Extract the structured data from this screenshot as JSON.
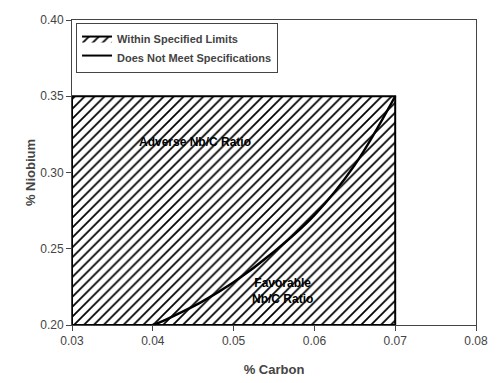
{
  "chart_data": {
    "type": "line",
    "xlabel": "% Carbon",
    "ylabel": "% Niobium",
    "xlim": [
      0.03,
      0.08
    ],
    "ylim": [
      0.2,
      0.4
    ],
    "xticks": [
      0.03,
      0.04,
      0.05,
      0.06,
      0.07,
      0.08
    ],
    "yticks": [
      {
        "value": 0.2,
        "label": "0.20"
      },
      0.25,
      {
        "value": 0.3,
        "label": "0.30"
      },
      0.35,
      {
        "value": 0.4,
        "label": "0.40"
      }
    ],
    "grid": false,
    "legend": "upper left",
    "series": [
      {
        "name": "Within Specified Limits",
        "type": "area",
        "color": "#000000",
        "x": [
          0.03,
          0.07,
          0.07,
          0.03,
          0.03
        ],
        "values": [
          0.2,
          0.2,
          0.35,
          0.35,
          0.2
        ]
      },
      {
        "name": "Does Not Meet Specifications",
        "type": "area",
        "color": "#ffffff",
        "x": [],
        "values": []
      },
      {
        "type": "line",
        "color": "#000000",
        "line_style": "solid",
        "x": [
          0.04,
          0.041,
          0.043,
          0.046,
          0.05,
          0.055,
          0.06,
          0.065,
          0.07
        ],
        "values": [
          0.2,
          0.202,
          0.207,
          0.215,
          0.228,
          0.248,
          0.272,
          0.305,
          0.35
        ]
      }
    ],
    "annotations": [
      {
        "text": "Adverse Nb/C Ratio",
        "x": 0.038,
        "y": 0.32
      },
      {
        "text": "Favorable\nNb/C Ratio",
        "x": 0.056,
        "y": 0.222
      }
    ]
  }
}
